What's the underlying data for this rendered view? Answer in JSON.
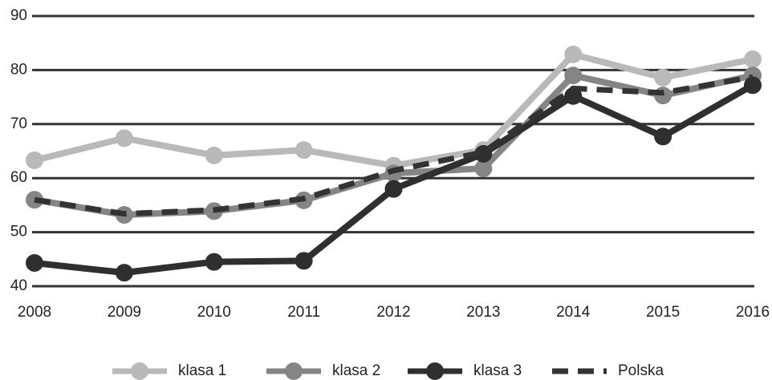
{
  "chart_data": {
    "type": "line",
    "categories": [
      "2008",
      "2009",
      "2010",
      "2011",
      "2012",
      "2013",
      "2014",
      "2015",
      "2016"
    ],
    "series": [
      {
        "name": "klasa 1",
        "color": "#b9b9b9",
        "markers": true,
        "dashed": false,
        "values": [
          63.3,
          67.4,
          64.2,
          65.2,
          62.3,
          65.2,
          82.9,
          78.6,
          82.0
        ]
      },
      {
        "name": "klasa 2",
        "color": "#858585",
        "markers": true,
        "dashed": false,
        "values": [
          56.0,
          53.2,
          53.9,
          55.9,
          60.9,
          61.8,
          79.0,
          75.3,
          79.0
        ]
      },
      {
        "name": "klasa 3",
        "color": "#2f2f2f",
        "markers": true,
        "dashed": false,
        "values": [
          44.3,
          42.5,
          44.5,
          44.7,
          58.0,
          64.5,
          75.2,
          67.7,
          77.2
        ]
      },
      {
        "name": "Polska",
        "color": "#333333",
        "markers": false,
        "dashed": true,
        "values": [
          56.0,
          53.4,
          54.1,
          56.2,
          61.4,
          64.8,
          76.6,
          75.8,
          78.7
        ]
      }
    ],
    "ylim": [
      40,
      90
    ],
    "yticks": [
      40,
      50,
      60,
      70,
      80,
      90
    ],
    "grid": true,
    "legend": "bottom"
  }
}
